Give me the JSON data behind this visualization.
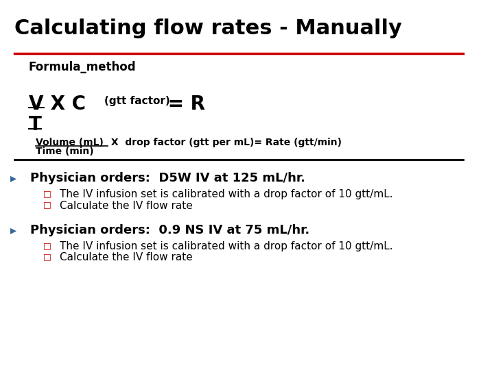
{
  "title": "Calculating flow rates - Manually",
  "subtitle": "Formula_method",
  "explain1": " X  drop factor (gtt per mL)= Rate (gtt/min)",
  "explain2": "Time (min)",
  "bullet1": "Physician orders:  D5W IV at 125 mL/hr.",
  "sub1a": "The IV infusion set is calibrated with a drop factor of 10 gtt/mL.",
  "sub1b": "Calculate the IV flow rate",
  "bullet2": "Physician orders:  0.9 NS IV at 75 mL/hr.",
  "sub2a": "The IV infusion set is calibrated with a drop factor of 10 gtt/mL.",
  "sub2b": "Calculate the IV flow rate",
  "title_color": "#000000",
  "red_line_color": "#cc0000",
  "black_line_color": "#000000",
  "sub_bullet_color": "#cc0000",
  "bg_color": "#ffffff",
  "arrow_color": "#336699"
}
